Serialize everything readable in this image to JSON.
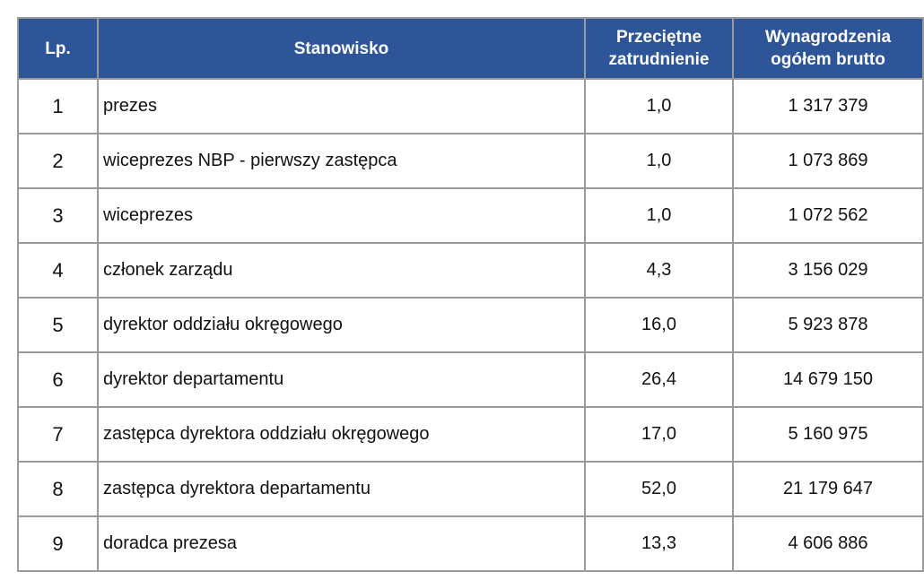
{
  "table": {
    "header": [
      "Lp.",
      "Stanowisko",
      "Przeciętne zatrudnienie",
      "Wynagrodzenia ogółem brutto"
    ],
    "rows": [
      [
        "1",
        "prezes",
        "1,0",
        "1 317 379"
      ],
      [
        "2",
        "wiceprezes NBP - pierwszy zastępca",
        "1,0",
        "1 073 869"
      ],
      [
        "3",
        "wiceprezes",
        "1,0",
        "1 072 562"
      ],
      [
        "4",
        "członek zarządu",
        "4,3",
        "3 156 029"
      ],
      [
        "5",
        "dyrektor oddziału okręgowego",
        "16,0",
        "5 923 878"
      ],
      [
        "6",
        "dyrektor departamentu",
        "26,4",
        "14 679 150"
      ],
      [
        "7",
        "zastępca dyrektora oddziału okręgowego",
        "17,0",
        "5 160 975"
      ],
      [
        "8",
        "zastępca dyrektora departamentu",
        "52,0",
        "21 179 647"
      ],
      [
        "9",
        "doradca prezesa",
        "13,3",
        "4 606 886"
      ]
    ]
  }
}
